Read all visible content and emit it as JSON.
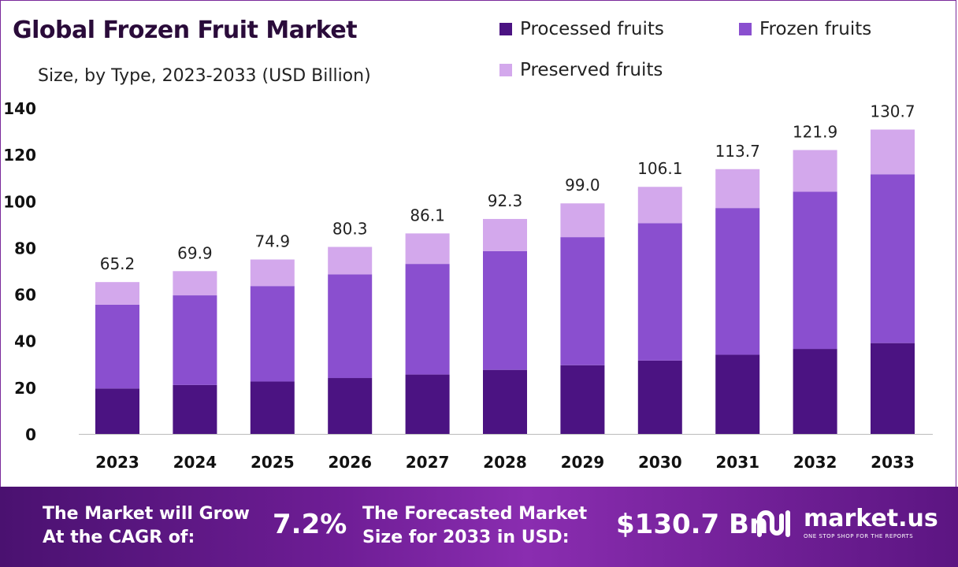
{
  "title": "Global Frozen Fruit Market",
  "subtitle": "Size, by Type, 2023-2033 (USD Billion)",
  "colors": {
    "processed": "#4b1382",
    "frozen": "#8a4fcf",
    "preserved": "#d3a8ec",
    "border": "#7a2a9b"
  },
  "legend": [
    {
      "label": "Processed fruits",
      "color": "#4b1382"
    },
    {
      "label": "Frozen fruits",
      "color": "#8a4fcf"
    },
    {
      "label": "Preserved fruits",
      "color": "#d3a8ec"
    }
  ],
  "chart_data": {
    "type": "bar",
    "stacked": true,
    "categories": [
      "2023",
      "2024",
      "2025",
      "2026",
      "2027",
      "2028",
      "2029",
      "2030",
      "2031",
      "2032",
      "2033"
    ],
    "series": [
      {
        "name": "Processed fruits",
        "values": [
          19.5,
          21.0,
          22.5,
          24.0,
          25.5,
          27.5,
          29.5,
          31.5,
          34.0,
          36.5,
          39.0
        ]
      },
      {
        "name": "Frozen fruits",
        "values": [
          36.0,
          38.5,
          41.0,
          44.5,
          47.5,
          51.0,
          55.0,
          59.0,
          63.0,
          67.5,
          72.5
        ]
      },
      {
        "name": "Preserved fruits",
        "values": [
          9.7,
          10.4,
          11.4,
          11.8,
          13.1,
          13.8,
          14.5,
          15.6,
          16.7,
          17.9,
          19.2
        ]
      }
    ],
    "totals": [
      "65.2",
      "69.9",
      "74.9",
      "80.3",
      "86.1",
      "92.3",
      "99.0",
      "106.1",
      "113.7",
      "121.9",
      "130.7"
    ],
    "ylim": [
      0,
      140
    ],
    "yticks": [
      "0",
      "20",
      "40",
      "60",
      "80",
      "100",
      "120",
      "140"
    ],
    "grid": false,
    "legend_position": "top-right"
  },
  "banner": {
    "cagr_text_line1": "The Market will Grow",
    "cagr_text_line2": "At the CAGR of:",
    "cagr_value": "7.2%",
    "forecast_text_line1": "The Forecasted Market",
    "forecast_text_line2": "Size for 2033 in USD:",
    "forecast_value": "$130.7 Bn",
    "brand_name": "market.us",
    "brand_tagline": "ONE STOP SHOP FOR THE REPORTS"
  }
}
